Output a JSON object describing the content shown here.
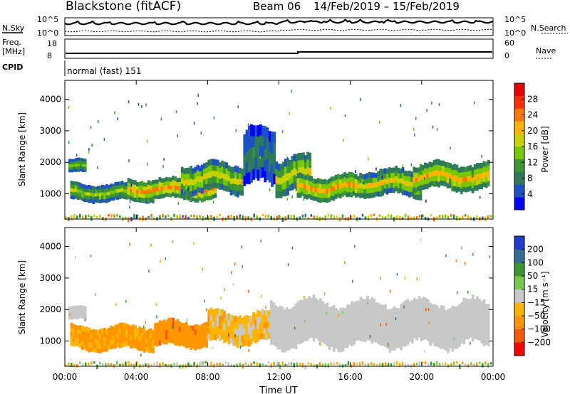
{
  "header": {
    "station": "Blackstone (fitACF)",
    "beam": "Beam 06",
    "dates": "14/Feb/2019 – 15/Feb/2019"
  },
  "strip_labels": {
    "nsky": "N.Sky",
    "nsearch": "N.Search",
    "freq": "Freq.",
    "mhz": "[MHz]",
    "nave": "Nave",
    "cpid": "CPID",
    "cpid_value": "normal (fast) 151",
    "n_tick_high": "10^5",
    "n_tick_low": "10^0",
    "freq_ticks": [
      "18",
      "8"
    ],
    "nave_ticks": [
      "60",
      "0"
    ]
  },
  "colors": {
    "power_scale": [
      "#0000ff",
      "#1e50c8",
      "#2f7a5a",
      "#3c9632",
      "#78c800",
      "#c8d200",
      "#ffb400",
      "#ff7800",
      "#ff3200",
      "#e60000"
    ],
    "velocity_scale": [
      "#ff0000",
      "#ff5a00",
      "#ff9600",
      "#ffb400",
      "#c8c8c8",
      "#78c850",
      "#3c9632",
      "#326e96",
      "#1e3cc8"
    ]
  },
  "chart_data": [
    {
      "type": "heatmap",
      "name": "power-panel",
      "title": "",
      "xlabel": "Time UT",
      "ylabel": "Slant Range [km]",
      "xlim": [
        "00:00",
        "24:00"
      ],
      "ylim": [
        200,
        4600
      ],
      "x_ticks": [
        "00:00",
        "04:00",
        "08:00",
        "12:00",
        "16:00",
        "20:00",
        "00:00"
      ],
      "y_ticks": [
        1000,
        2000,
        3000,
        4000
      ],
      "colorbar_label": "Power [dB]",
      "colorbar_ticks": [
        4,
        8,
        12,
        16,
        20,
        24,
        28
      ],
      "colorbar_range": [
        0,
        32
      ],
      "bands": [
        {
          "t": [
            0.2,
            1.2
          ],
          "r": [
            1650,
            2100
          ],
          "level": 14
        },
        {
          "t": [
            0.3,
            5
          ],
          "r": [
            750,
            1350
          ],
          "level": 16
        },
        {
          "t": [
            3.5,
            8.5
          ],
          "r": [
            800,
            1500
          ],
          "level": 23
        },
        {
          "t": [
            6.5,
            10
          ],
          "r": [
            1000,
            2000
          ],
          "level": 18
        },
        {
          "t": [
            10,
            11.8
          ],
          "r": [
            1200,
            3100
          ],
          "level": 8
        },
        {
          "t": [
            11.8,
            13.8
          ],
          "r": [
            1000,
            2200
          ],
          "level": 18
        },
        {
          "t": [
            13,
            16.5
          ],
          "r": [
            800,
            1600
          ],
          "level": 22
        },
        {
          "t": [
            16.5,
            20
          ],
          "r": [
            900,
            1800
          ],
          "level": 19
        },
        {
          "t": [
            19.5,
            23.8
          ],
          "r": [
            1100,
            2000
          ],
          "level": 21
        }
      ]
    },
    {
      "type": "heatmap",
      "name": "velocity-panel",
      "title": "",
      "xlabel": "Time UT",
      "ylabel": "Slant Range [km]",
      "xlim": [
        "00:00",
        "24:00"
      ],
      "ylim": [
        200,
        4600
      ],
      "x_ticks": [
        "00:00",
        "04:00",
        "08:00",
        "12:00",
        "16:00",
        "20:00",
        "00:00"
      ],
      "y_ticks": [
        1000,
        2000,
        3000,
        4000
      ],
      "colorbar_label": "Velocity [m s⁻¹]",
      "colorbar_ticks": [
        "200",
        "100",
        "50",
        "15",
        "−15",
        "−50",
        "−100",
        "−200"
      ],
      "bands": [
        {
          "t": [
            0.2,
            1.2
          ],
          "r": [
            1650,
            2100
          ],
          "velocity": 0
        },
        {
          "t": [
            0.3,
            5
          ],
          "r": [
            700,
            1500
          ],
          "velocity": -60
        },
        {
          "t": [
            5,
            8
          ],
          "r": [
            800,
            1650
          ],
          "velocity": -80
        },
        {
          "t": [
            8,
            11.5
          ],
          "r": [
            900,
            1950
          ],
          "velocity": -30
        },
        {
          "t": [
            11.5,
            23.8
          ],
          "r": [
            800,
            2300
          ],
          "velocity": 0
        }
      ]
    }
  ]
}
